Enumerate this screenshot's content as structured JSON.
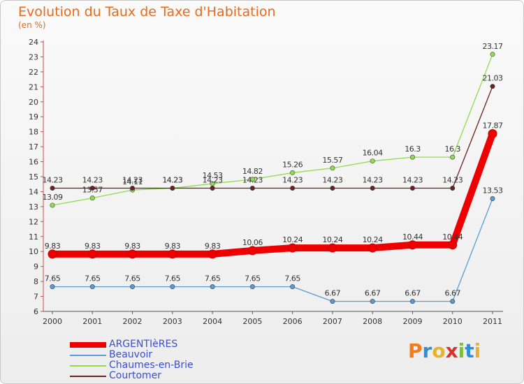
{
  "title": "Evolution du Taux de Taxe d'Habitation",
  "subtitle": "(en %)",
  "logo": "Proxiti",
  "chart_data": {
    "type": "line",
    "title": "Evolution du Taux de Taxe d'Habitation",
    "ylabel": "(en %)",
    "xlabel": "",
    "ylim": [
      6,
      24
    ],
    "grid": false,
    "legend_position": "bottom-left",
    "x": [
      "2000",
      "2001",
      "2002",
      "2003",
      "2004",
      "2005",
      "2006",
      "2007",
      "2008",
      "2009",
      "2010",
      "2011"
    ],
    "yticks": [
      "6",
      "7",
      "8",
      "9",
      "10",
      "11",
      "12",
      "13",
      "14",
      "15",
      "16",
      "17",
      "18",
      "19",
      "20",
      "21",
      "22",
      "23",
      "24"
    ],
    "series": [
      {
        "name": "ARGENTIèRES",
        "color": "#ee0000",
        "emphasis": "thick",
        "values": [
          9.83,
          9.83,
          9.83,
          9.83,
          9.83,
          10.06,
          10.24,
          10.24,
          10.24,
          10.44,
          10.44,
          17.87
        ],
        "labels": [
          "9.83",
          "9.83",
          "9.83",
          "9.83",
          "9.83",
          "10.06",
          "10.24",
          "10.24",
          "10.24",
          "10.44",
          "10.44",
          "17.87"
        ]
      },
      {
        "name": "Beauvoir",
        "color": "#5b9bd5",
        "values": [
          7.65,
          7.65,
          7.65,
          7.65,
          7.65,
          7.65,
          7.65,
          6.67,
          6.67,
          6.67,
          6.67,
          13.53
        ],
        "labels": [
          "7.65",
          "7.65",
          "7.65",
          "7.65",
          "7.65",
          "7.65",
          "7.65",
          "6.67",
          "6.67",
          "6.67",
          "6.67",
          "13.53"
        ]
      },
      {
        "name": "Chaumes-en-Brie",
        "color": "#8fdc4f",
        "values": [
          13.09,
          13.57,
          14.11,
          14.23,
          14.53,
          14.82,
          15.26,
          15.57,
          16.04,
          16.3,
          16.3,
          23.17
        ],
        "labels": [
          "13.09",
          "13.57",
          "14.11",
          "14.23",
          "14.53",
          "14.82",
          "15.26",
          "15.57",
          "16.04",
          "16.3",
          "16.3",
          "23.17"
        ]
      },
      {
        "name": "Courtomer",
        "color": "#6b1f1f",
        "values": [
          14.23,
          14.23,
          14.23,
          14.23,
          14.23,
          14.23,
          14.23,
          14.23,
          14.23,
          14.23,
          14.23,
          21.03
        ],
        "labels": [
          "14.23",
          "14.23",
          "14.23",
          "14.23",
          "14.23",
          "14.23",
          "14.23",
          "14.23",
          "14.23",
          "14.23",
          "14.23",
          "21.03"
        ]
      }
    ]
  }
}
